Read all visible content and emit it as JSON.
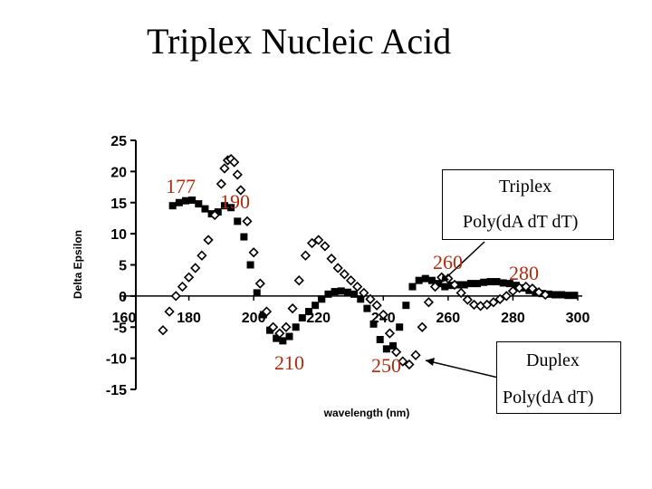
{
  "title": "Triplex Nucleic Acid",
  "chart_data": {
    "type": "scatter",
    "xlabel": "wavelength (nm)",
    "ylabel": "Delta Epsilon",
    "xlim": [
      160,
      300
    ],
    "ylim": [
      -15,
      25
    ],
    "xticks": [
      "160",
      "180",
      "200",
      "220",
      "240",
      "260",
      "280",
      "300"
    ],
    "yticks": [
      "25",
      "20",
      "15",
      "10",
      "5",
      "0",
      "-5",
      "-10",
      "-15"
    ],
    "series": [
      {
        "marker": "filled-square",
        "color": "#000000",
        "x": [
          175,
          177,
          179,
          181,
          183,
          185,
          187,
          189,
          191,
          193,
          195,
          197,
          199,
          201,
          203,
          205,
          207,
          209,
          211,
          213,
          215,
          217,
          219,
          221,
          223,
          225,
          227,
          229,
          231,
          233,
          235,
          237,
          239,
          241,
          243,
          245,
          247,
          249,
          251,
          253,
          255,
          257,
          259,
          261,
          263,
          265,
          267,
          269,
          271,
          273,
          275,
          277,
          279,
          281,
          283,
          285,
          287,
          289,
          291,
          293,
          295,
          297,
          299
        ],
        "y": [
          14.5,
          15,
          15.3,
          15.4,
          14.8,
          14,
          13.2,
          13.5,
          14.5,
          14.2,
          12,
          9.5,
          5,
          0.5,
          -3,
          -5.5,
          -6.8,
          -7.2,
          -6.5,
          -5,
          -3.5,
          -2.5,
          -1.5,
          -0.5,
          0.3,
          0.7,
          0.8,
          0.6,
          0.3,
          -0.5,
          -2,
          -4.5,
          -7,
          -8.5,
          -8,
          -5,
          -1.5,
          1.5,
          2.5,
          2.8,
          2.5,
          2,
          1.5,
          1.7,
          1.8,
          1.8,
          2,
          2,
          2.2,
          2.3,
          2.3,
          2.1,
          2,
          1.7,
          1.3,
          0.9,
          0.6,
          0.4,
          0.3,
          0.2,
          0.2,
          0.1,
          0.1
        ]
      },
      {
        "marker": "open-diamond",
        "color": "#000000",
        "x": [
          172,
          174,
          176,
          178,
          180,
          182,
          184,
          186,
          188,
          190,
          191,
          192,
          193,
          194,
          195,
          196,
          198,
          200,
          202,
          204,
          206,
          208,
          210,
          212,
          214,
          216,
          218,
          220,
          222,
          224,
          226,
          228,
          230,
          232,
          234,
          236,
          238,
          240,
          242,
          244,
          246,
          248,
          250,
          252,
          254,
          256,
          258,
          260,
          262,
          264,
          266,
          268,
          270,
          272,
          274,
          276,
          278,
          280,
          282,
          284,
          286,
          288,
          290
        ],
        "y": [
          -5.5,
          -2.5,
          0,
          1.5,
          3,
          4.5,
          6.5,
          9,
          13,
          18,
          20.5,
          21.8,
          22,
          21.5,
          19.5,
          17,
          12,
          7,
          2,
          -2.5,
          -5,
          -6,
          -5,
          -2,
          2.5,
          6.5,
          8.5,
          9,
          8,
          6,
          4.5,
          3.5,
          2.5,
          1.5,
          0.5,
          -0.5,
          -1.5,
          -3,
          -6,
          -9,
          -10.5,
          -11,
          -9.5,
          -5,
          -1,
          1.5,
          3,
          2.8,
          1.8,
          0.5,
          -0.6,
          -1.4,
          -1.6,
          -1.4,
          -1,
          -0.5,
          0,
          0.8,
          1.3,
          1.5,
          1.2,
          0.6,
          0.2
        ]
      }
    ]
  },
  "annotations": {
    "peak_177": "177",
    "peak_190": "190",
    "peak_210": "210",
    "peak_250": "250",
    "peak_260": "260",
    "peak_280": "280"
  },
  "legend_triplex": {
    "line1": "Triplex",
    "line2": "Poly(dA dT dT)"
  },
  "legend_duplex": {
    "line1": "Duplex",
    "line2": "Poly(dA dT)"
  }
}
